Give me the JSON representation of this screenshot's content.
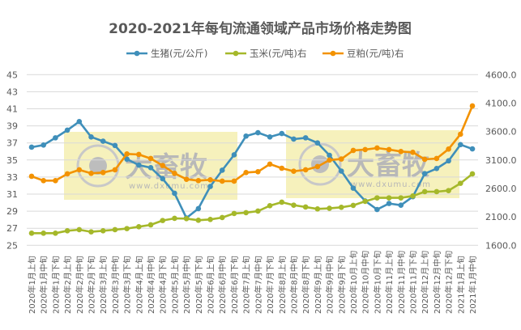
{
  "chart_data": {
    "type": "line",
    "title": "2020-2021年每旬流通领域产品市场价格走势图",
    "categories": [
      "2020年1月上旬",
      "2020年1月中旬",
      "2020年1月下旬",
      "2020年2月上旬",
      "2020年2月中旬",
      "2020年2月下旬",
      "2020年3月上旬",
      "2020年3月中旬",
      "2020年3月下旬",
      "2020年4月上旬",
      "2020年4月中旬",
      "2020年4月下旬",
      "2020年5月上旬",
      "2020年5月中旬",
      "2020年5月下旬",
      "2020年6月上旬",
      "2020年6月中旬",
      "2020年6月下旬",
      "2020年7月上旬",
      "2020年7月中旬",
      "2020年7月下旬",
      "2020年8月上旬",
      "2020年8月中旬",
      "2020年8月下旬",
      "2020年9月上旬",
      "2020年9月中旬",
      "2020年9月下旬",
      "2020年10月上旬",
      "2020年10月中旬",
      "2020年10月下旬",
      "2020年11月上旬",
      "2020年11月中旬",
      "2020年11月下旬",
      "2020年12月上旬",
      "2020年12月中旬",
      "2020年12月下旬",
      "2021年1月上旬",
      "2021年1月中旬"
    ],
    "left_axis": {
      "min": 25,
      "max": 45,
      "step": 2,
      "ticks": [
        "45",
        "43",
        "41",
        "39",
        "37",
        "35",
        "33",
        "31",
        "29",
        "27",
        "25"
      ]
    },
    "right_axis": {
      "min": 1600,
      "max": 4600,
      "step": 500,
      "ticks": [
        "4600.0",
        "4100.0",
        "3600.0",
        "3100.0",
        "2600.0",
        "2100.0",
        "1600.0"
      ]
    },
    "grid": true,
    "legend_position": "top",
    "series": [
      {
        "name": "生猪(元/公斤)",
        "axis": "left",
        "color": "#3f8fba",
        "values": [
          36.5,
          36.75,
          37.6,
          38.5,
          39.5,
          37.7,
          37.2,
          36.7,
          35.1,
          34.4,
          34.1,
          32.8,
          31.1,
          28.2,
          29.3,
          31.9,
          33.8,
          35.6,
          37.8,
          38.2,
          37.7,
          38.1,
          37.45,
          37.6,
          37.0,
          35.55,
          33.7,
          31.7,
          30.2,
          29.2,
          29.9,
          29.7,
          30.7,
          33.4,
          34.0,
          34.9,
          36.8,
          36.3
        ]
      },
      {
        "name": "玉米(元/吨)右",
        "axis": "right",
        "color": "#a5b82a",
        "values": [
          1813,
          1813,
          1813,
          1856,
          1875,
          1837,
          1856,
          1875,
          1894,
          1927,
          1960,
          2036,
          2074,
          2069,
          2041,
          2055,
          2088,
          2160,
          2174,
          2202,
          2297,
          2358,
          2306,
          2273,
          2240,
          2250,
          2268,
          2302,
          2373,
          2434,
          2434,
          2434,
          2467,
          2543,
          2543,
          2562,
          2690,
          2856
        ]
      },
      {
        "name": "豆粕(元/吨)右",
        "axis": "right",
        "color": "#f39200",
        "values": [
          2813,
          2737,
          2737,
          2856,
          2927,
          2865,
          2880,
          2927,
          3207,
          3197,
          3126,
          3003,
          2865,
          2761,
          2737,
          2752,
          2728,
          2728,
          2880,
          2894,
          3027,
          2955,
          2903,
          2927,
          2984,
          3098,
          3117,
          3268,
          3283,
          3311,
          3283,
          3249,
          3235,
          3112,
          3126,
          3292,
          3553,
          4050
        ]
      }
    ]
  },
  "watermark": {
    "brand": "大畜牧",
    "url": "www.dxumu.com",
    "box_color": "#f3eca6"
  }
}
